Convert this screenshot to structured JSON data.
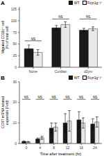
{
  "chart_data": [
    {
      "type": "bar",
      "title": "A",
      "categories": [
        "None",
        "Curdlan",
        "d2ym"
      ],
      "series": [
        {
          "name": "WT",
          "color": "#1a1a1a",
          "values": [
            40,
            85,
            80
          ],
          "errors": [
            8,
            5,
            4
          ]
        },
        {
          "name": "Fcγr1g⁻/⁻",
          "color": "#e8e8e8",
          "values": [
            32,
            92,
            83
          ],
          "errors": [
            6,
            6,
            4
          ]
        }
      ],
      "y_label": "Migrated CD11c⁺ cell\n(% of total cell)",
      "ylim": [
        0,
        130
      ],
      "yticks": [
        0,
        25,
        50,
        75,
        100,
        125
      ],
      "annotations": [
        {
          "text": "NS",
          "x": "None",
          "y": 57
        },
        {
          "text": "NS",
          "x": "Curdlan",
          "y": 104
        },
        {
          "text": "NS",
          "x": "d2ym",
          "y": 104
        }
      ],
      "legend": "upper right",
      "grid": false
    },
    {
      "type": "bar",
      "title": "B",
      "categories": [
        "0",
        "4",
        "8",
        "12",
        "16",
        "24"
      ],
      "series": [
        {
          "name": "WT",
          "color": "#1a1a1a",
          "values": [
            1.0,
            2.2,
            7.5,
            10.0,
            11.5,
            9.5
          ],
          "errors": [
            0.3,
            0.5,
            2.5,
            4.5,
            4.0,
            2.5
          ]
        },
        {
          "name": "Fcγr1g⁻/⁻",
          "color": "#e8e8e8",
          "values": [
            0.8,
            2.8,
            8.0,
            11.0,
            10.0,
            10.5
          ],
          "errors": [
            0.2,
            0.8,
            2.0,
            5.0,
            2.5,
            2.5
          ]
        }
      ],
      "y_label": "CCR7 mRNA related\nexpressin (Fold)",
      "x_label": "Time after treatment (hr)",
      "ylim": [
        0,
        30
      ],
      "yticks": [
        0,
        10,
        20,
        30
      ],
      "annotations": [
        {
          "text": "NS",
          "x": "0",
          "y": 21.5
        },
        {
          "text": "NS",
          "x": "4",
          "y": 21.5
        },
        {
          "text": "NS",
          "x": "8",
          "y": 21.5
        },
        {
          "text": "NS",
          "x": "12",
          "y": 21.5
        },
        {
          "text": "NS",
          "x": "16",
          "y": 21.5
        },
        {
          "text": "NS",
          "x": "24",
          "y": 21.5
        }
      ],
      "legend": "upper right",
      "grid": false
    }
  ]
}
